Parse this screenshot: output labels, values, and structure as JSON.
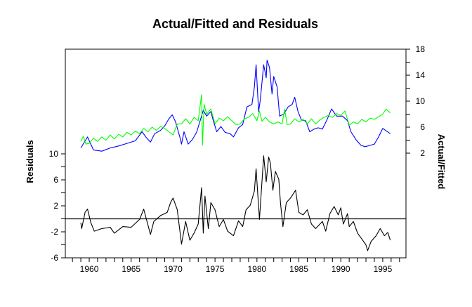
{
  "chart_data": {
    "type": "line",
    "title": "Actual/Fitted and Residuals",
    "left_axis": {
      "label": "Residuals",
      "range": [
        -6,
        10
      ],
      "ticks": [
        10,
        6,
        2,
        -2,
        -6
      ],
      "minor_step": 2
    },
    "right_axis": {
      "label": "Actual/Fitted",
      "range": [
        2,
        18
      ],
      "ticks": [
        18,
        14,
        10,
        6,
        2
      ],
      "minor_step": 2
    },
    "x_axis": {
      "range": [
        1957.15,
        1997.77
      ],
      "ticks": [
        1960,
        1965,
        1970,
        1975,
        1980,
        1985,
        1990,
        1995
      ],
      "minor_step": 1
    },
    "zero_line": 0,
    "grid": false,
    "colors": {
      "actual": "#0000ff",
      "fitted": "#00ff00",
      "residual": "#000000"
    },
    "series": [
      {
        "name": "Actual",
        "axis": "right",
        "points": [
          [
            1959.0,
            2.8
          ],
          [
            1959.8,
            4.5
          ],
          [
            1960.5,
            2.5
          ],
          [
            1961.5,
            2.3
          ],
          [
            1962.5,
            2.8
          ],
          [
            1963.5,
            3.1
          ],
          [
            1964.5,
            3.5
          ],
          [
            1965.5,
            3.9
          ],
          [
            1966.3,
            5.3
          ],
          [
            1966.8,
            4.4
          ],
          [
            1967.3,
            3.7
          ],
          [
            1967.8,
            5.0
          ],
          [
            1968.5,
            5.5
          ],
          [
            1969.0,
            6.2
          ],
          [
            1969.5,
            7.3
          ],
          [
            1969.9,
            7.9
          ],
          [
            1970.3,
            6.8
          ],
          [
            1970.8,
            4.5
          ],
          [
            1971.0,
            3.4
          ],
          [
            1971.3,
            5.3
          ],
          [
            1971.8,
            3.4
          ],
          [
            1972.3,
            4.1
          ],
          [
            1972.8,
            5.2
          ],
          [
            1973.3,
            7.3
          ],
          [
            1973.6,
            8.6
          ],
          [
            1974.0,
            7.7
          ],
          [
            1974.5,
            8.4
          ],
          [
            1974.8,
            7.0
          ],
          [
            1975.2,
            5.3
          ],
          [
            1975.7,
            6.1
          ],
          [
            1976.2,
            5.2
          ],
          [
            1976.8,
            5.0
          ],
          [
            1977.2,
            4.5
          ],
          [
            1977.8,
            5.9
          ],
          [
            1978.3,
            6.4
          ],
          [
            1978.8,
            9.1
          ],
          [
            1979.4,
            9.5
          ],
          [
            1979.7,
            12.2
          ],
          [
            1979.9,
            15.6
          ],
          [
            1980.2,
            8.4
          ],
          [
            1980.4,
            10.2
          ],
          [
            1980.8,
            15.6
          ],
          [
            1981.1,
            13.6
          ],
          [
            1981.2,
            16.3
          ],
          [
            1981.5,
            15.2
          ],
          [
            1981.8,
            11.1
          ],
          [
            1982.0,
            13.8
          ],
          [
            1982.4,
            12.2
          ],
          [
            1982.7,
            7.7
          ],
          [
            1983.2,
            8.0
          ],
          [
            1983.7,
            9.1
          ],
          [
            1984.2,
            9.5
          ],
          [
            1984.5,
            10.6
          ],
          [
            1984.9,
            8.4
          ],
          [
            1985.3,
            7.1
          ],
          [
            1985.8,
            7.0
          ],
          [
            1986.3,
            5.3
          ],
          [
            1986.8,
            5.7
          ],
          [
            1987.3,
            5.9
          ],
          [
            1987.8,
            5.7
          ],
          [
            1988.3,
            7.0
          ],
          [
            1988.9,
            8.8
          ],
          [
            1989.5,
            7.7
          ],
          [
            1990.2,
            7.7
          ],
          [
            1990.8,
            7.0
          ],
          [
            1991.2,
            5.3
          ],
          [
            1991.8,
            4.1
          ],
          [
            1992.4,
            3.2
          ],
          [
            1992.9,
            3.0
          ],
          [
            1993.5,
            3.2
          ],
          [
            1994.0,
            3.4
          ],
          [
            1994.5,
            4.5
          ],
          [
            1995.0,
            5.8
          ],
          [
            1995.9,
            5.0
          ]
        ]
      },
      {
        "name": "Fitted",
        "axis": "right",
        "points": [
          [
            1959.0,
            3.8
          ],
          [
            1959.3,
            4.6
          ],
          [
            1959.6,
            3.4
          ],
          [
            1960.0,
            3.5
          ],
          [
            1960.5,
            4.3
          ],
          [
            1961.0,
            3.8
          ],
          [
            1961.5,
            4.5
          ],
          [
            1962.0,
            4.0
          ],
          [
            1962.5,
            4.8
          ],
          [
            1963.0,
            4.2
          ],
          [
            1963.5,
            4.9
          ],
          [
            1964.0,
            4.5
          ],
          [
            1964.5,
            5.2
          ],
          [
            1965.0,
            4.8
          ],
          [
            1965.5,
            5.4
          ],
          [
            1966.0,
            5.0
          ],
          [
            1966.5,
            5.8
          ],
          [
            1967.0,
            5.3
          ],
          [
            1967.5,
            6.0
          ],
          [
            1968.0,
            5.5
          ],
          [
            1968.5,
            6.1
          ],
          [
            1969.0,
            5.8
          ],
          [
            1969.5,
            5.3
          ],
          [
            1970.0,
            4.8
          ],
          [
            1970.5,
            6.5
          ],
          [
            1971.0,
            6.5
          ],
          [
            1971.5,
            7.3
          ],
          [
            1972.0,
            6.5
          ],
          [
            1972.5,
            7.5
          ],
          [
            1973.0,
            7.0
          ],
          [
            1973.4,
            11.0
          ],
          [
            1973.5,
            3.2
          ],
          [
            1973.7,
            9.5
          ],
          [
            1974.0,
            8.0
          ],
          [
            1974.5,
            8.8
          ],
          [
            1975.0,
            6.5
          ],
          [
            1975.5,
            7.4
          ],
          [
            1976.0,
            7.0
          ],
          [
            1976.5,
            7.6
          ],
          [
            1977.0,
            7.0
          ],
          [
            1977.5,
            6.4
          ],
          [
            1978.0,
            6.5
          ],
          [
            1978.5,
            7.3
          ],
          [
            1979.0,
            7.5
          ],
          [
            1979.5,
            8.1
          ],
          [
            1980.0,
            7.0
          ],
          [
            1980.3,
            8.5
          ],
          [
            1980.6,
            6.9
          ],
          [
            1981.0,
            7.5
          ],
          [
            1981.5,
            6.8
          ],
          [
            1982.0,
            6.5
          ],
          [
            1982.5,
            6.8
          ],
          [
            1983.0,
            6.5
          ],
          [
            1983.3,
            8.8
          ],
          [
            1983.6,
            6.4
          ],
          [
            1984.0,
            6.5
          ],
          [
            1984.5,
            7.3
          ],
          [
            1985.0,
            6.8
          ],
          [
            1985.5,
            7.2
          ],
          [
            1986.0,
            6.5
          ],
          [
            1986.5,
            7.3
          ],
          [
            1987.0,
            6.5
          ],
          [
            1987.5,
            7.1
          ],
          [
            1988.0,
            7.5
          ],
          [
            1988.5,
            7.8
          ],
          [
            1989.0,
            7.5
          ],
          [
            1989.5,
            8.1
          ],
          [
            1990.0,
            7.8
          ],
          [
            1990.5,
            8.5
          ],
          [
            1991.0,
            6.3
          ],
          [
            1991.5,
            6.8
          ],
          [
            1992.0,
            6.5
          ],
          [
            1992.5,
            7.2
          ],
          [
            1993.0,
            6.8
          ],
          [
            1993.5,
            7.4
          ],
          [
            1994.0,
            7.2
          ],
          [
            1994.5,
            7.6
          ],
          [
            1995.0,
            8.0
          ],
          [
            1995.4,
            8.8
          ],
          [
            1995.9,
            8.2
          ]
        ]
      },
      {
        "name": "Residual",
        "axis": "left",
        "points": [
          [
            1959.0,
            -0.6
          ],
          [
            1959.1,
            -1.5
          ],
          [
            1959.5,
            1.0
          ],
          [
            1959.8,
            1.5
          ],
          [
            1960.2,
            -0.6
          ],
          [
            1960.6,
            -1.9
          ],
          [
            1961.5,
            -1.5
          ],
          [
            1962.5,
            -1.3
          ],
          [
            1963.0,
            -2.2
          ],
          [
            1964.0,
            -1.2
          ],
          [
            1965.0,
            -1.3
          ],
          [
            1966.0,
            -0.1
          ],
          [
            1966.5,
            1.5
          ],
          [
            1967.3,
            -2.4
          ],
          [
            1967.7,
            -0.4
          ],
          [
            1968.5,
            0.5
          ],
          [
            1969.3,
            1.0
          ],
          [
            1969.7,
            2.5
          ],
          [
            1970.0,
            3.2
          ],
          [
            1970.5,
            1.4
          ],
          [
            1971.0,
            -3.9
          ],
          [
            1971.5,
            -0.4
          ],
          [
            1972.0,
            -3.3
          ],
          [
            1972.5,
            -2.2
          ],
          [
            1973.0,
            -0.8
          ],
          [
            1973.4,
            4.8
          ],
          [
            1973.6,
            -2.2
          ],
          [
            1973.8,
            3.5
          ],
          [
            1974.2,
            -1.5
          ],
          [
            1974.5,
            2.5
          ],
          [
            1975.0,
            1.4
          ],
          [
            1975.5,
            -1.2
          ],
          [
            1976.0,
            -0.1
          ],
          [
            1976.5,
            -1.9
          ],
          [
            1977.2,
            -2.6
          ],
          [
            1977.8,
            -0.3
          ],
          [
            1978.3,
            -1.2
          ],
          [
            1978.7,
            1.4
          ],
          [
            1979.2,
            2.1
          ],
          [
            1979.7,
            4.3
          ],
          [
            1979.9,
            7.7
          ],
          [
            1980.3,
            -0.1
          ],
          [
            1980.8,
            9.7
          ],
          [
            1981.1,
            5.7
          ],
          [
            1981.4,
            9.5
          ],
          [
            1981.6,
            8.6
          ],
          [
            1981.9,
            4.4
          ],
          [
            1982.2,
            7.3
          ],
          [
            1982.6,
            6.1
          ],
          [
            1982.8,
            2.5
          ],
          [
            1983.1,
            -1.2
          ],
          [
            1983.5,
            2.5
          ],
          [
            1984.0,
            3.2
          ],
          [
            1984.6,
            4.4
          ],
          [
            1985.0,
            1.0
          ],
          [
            1985.5,
            0.6
          ],
          [
            1986.0,
            1.4
          ],
          [
            1986.5,
            -0.8
          ],
          [
            1987.0,
            -1.5
          ],
          [
            1987.8,
            -0.4
          ],
          [
            1988.2,
            -1.9
          ],
          [
            1988.7,
            0.8
          ],
          [
            1989.2,
            1.9
          ],
          [
            1989.7,
            0.6
          ],
          [
            1990.0,
            1.7
          ],
          [
            1990.3,
            -0.8
          ],
          [
            1990.8,
            0.8
          ],
          [
            1991.0,
            -1.2
          ],
          [
            1991.5,
            -0.4
          ],
          [
            1992.0,
            -2.2
          ],
          [
            1992.5,
            -3.1
          ],
          [
            1993.0,
            -4.0
          ],
          [
            1993.2,
            -4.9
          ],
          [
            1993.6,
            -3.5
          ],
          [
            1994.2,
            -2.6
          ],
          [
            1994.7,
            -1.5
          ],
          [
            1995.2,
            -2.6
          ],
          [
            1995.6,
            -2.1
          ],
          [
            1995.9,
            -3.3
          ]
        ]
      }
    ]
  }
}
